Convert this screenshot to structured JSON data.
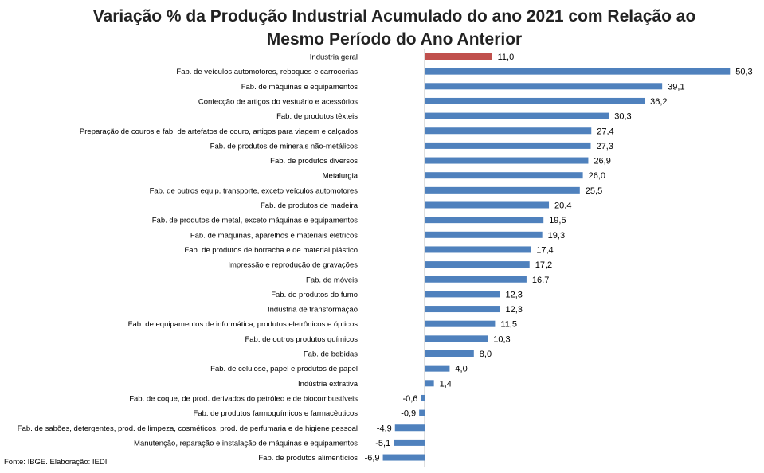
{
  "chart_data": {
    "type": "bar",
    "orientation": "horizontal",
    "title_lines": [
      "Variação % da Produção Industrial Acumulado do ano 2021 com Relação ao",
      "Mesmo Período do Ano Anterior"
    ],
    "xlabel": "",
    "ylabel": "",
    "xlim": [
      -7,
      51
    ],
    "grid": false,
    "legend": "none",
    "highlight_color": "#c0504d",
    "bar_color": "#4f81bd",
    "categories": [
      "Industria geral",
      "Fab. de veículos automotores, reboques e carrocerias",
      "Fab. de máquinas e equipamentos",
      "Confecção de artigos do vestuário e acessórios",
      "Fab. de produtos têxteis",
      "Preparação de couros e fab. de artefatos de couro, artigos para viagem e calçados",
      "Fab. de produtos de minerais não-metálicos",
      "Fab. de produtos diversos",
      "Metalurgia",
      "Fab. de outros equip. transporte, exceto veículos automotores",
      "Fab. de produtos de madeira",
      "Fab. de produtos de metal, exceto máquinas e equipamentos",
      "Fab. de máquinas, aparelhos e materiais elétricos",
      "Fab. de produtos de borracha e de material plástico",
      "Impressão e reprodução de gravações",
      "Fab. de móveis",
      "Fab. de produtos do fumo",
      "Indústria de transformação",
      "Fab. de equipamentos de informática, produtos eletrônicos e ópticos",
      "Fab. de outros produtos químicos",
      "Fab. de bebidas",
      "Fab. de celulose, papel e produtos de papel",
      "Indústria extrativa",
      "Fab. de coque, de prod. derivados do petróleo e de biocombustíveis",
      "Fab. de produtos farmoquímicos e farmacêuticos",
      "Fab. de sabões, detergentes, prod. de limpeza, cosméticos, prod. de perfumaria e de higiene pessoal",
      "Manutenção, reparação e instalação de máquinas e equipamentos",
      "Fab. de produtos alimentícios"
    ],
    "values": [
      11.0,
      50.3,
      39.1,
      36.2,
      30.3,
      27.4,
      27.3,
      26.9,
      26.0,
      25.5,
      20.4,
      19.5,
      19.3,
      17.4,
      17.2,
      16.7,
      12.3,
      12.3,
      11.5,
      10.3,
      8.0,
      4.0,
      1.4,
      -0.6,
      -0.9,
      -4.9,
      -5.1,
      -6.9
    ],
    "value_labels": [
      "11,0",
      "50,3",
      "39,1",
      "36,2",
      "30,3",
      "27,4",
      "27,3",
      "26,9",
      "26,0",
      "25,5",
      "20,4",
      "19,5",
      "19,3",
      "17,4",
      "17,2",
      "16,7",
      "12,3",
      "12,3",
      "11,5",
      "10,3",
      "8,0",
      "4,0",
      "1,4",
      "-0,6",
      "-0,9",
      "-4,9",
      "-5,1",
      "-6,9"
    ],
    "highlight_category": "Industria geral"
  },
  "source": "Fonte: IBGE. Elaboração: IEDI"
}
